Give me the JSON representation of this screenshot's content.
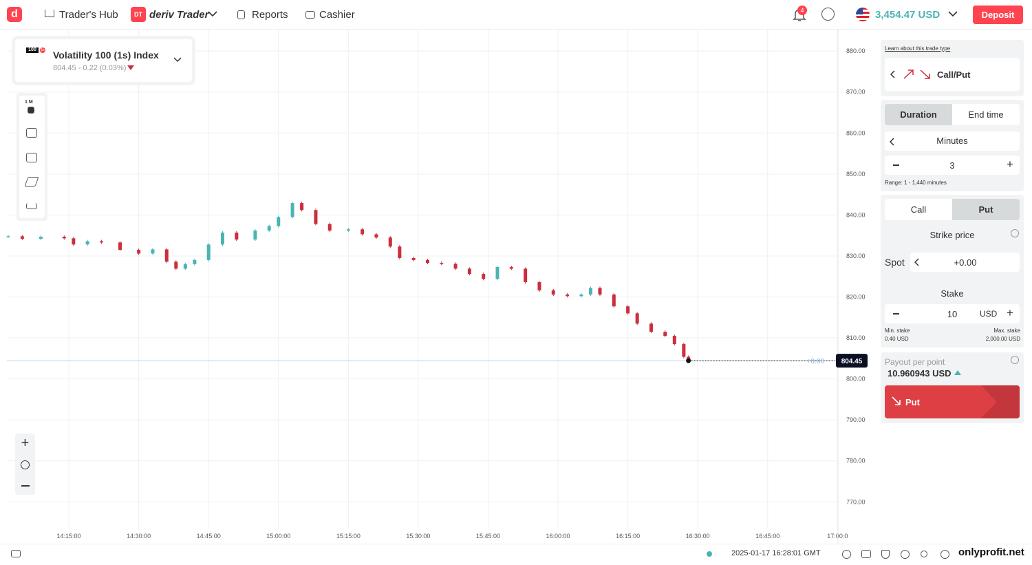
{
  "header": {
    "hub": "Trader's Hub",
    "brand_badge": "DT",
    "brand": "deriv Trader",
    "reports": "Reports",
    "cashier": "Cashier",
    "notifications": "4",
    "balance": "3,454.47 USD",
    "deposit": "Deposit"
  },
  "instrument": {
    "badge": "100",
    "badge2": "1s",
    "name": "Volatility 100 (1s) Index",
    "quote": "804.45 - 0.22 (0.03%)"
  },
  "toolbar": {
    "interval": "1 M"
  },
  "chart_data": {
    "type": "candlestick",
    "x": [
      842,
      845,
      849,
      854,
      856,
      859,
      862,
      866,
      870,
      873,
      876,
      878,
      880,
      882,
      885,
      888,
      891,
      895,
      898,
      900,
      903,
      905,
      908,
      911,
      915,
      918,
      921,
      924,
      926,
      929,
      932,
      935,
      938,
      941,
      944,
      947,
      950,
      953,
      956,
      959,
      962,
      965,
      967,
      969,
      972,
      975,
      977,
      980,
      983,
      985,
      987,
      988
    ],
    "close": [
      834.8,
      834.2,
      834.7,
      834.3,
      832.8,
      833.6,
      833.3,
      831.5,
      830.6,
      831.6,
      828.6,
      826.9,
      828,
      829,
      832.8,
      835.7,
      834,
      836.2,
      837.3,
      839.5,
      842.9,
      841.2,
      837.8,
      836.2,
      836.5,
      835.3,
      834.5,
      832.3,
      829.5,
      829,
      828.3,
      828.1,
      826.9,
      825.6,
      824.4,
      827.3,
      826.9,
      823.6,
      821.6,
      820.6,
      820.2,
      820.6,
      822.2,
      820.6,
      817.7,
      816,
      813.5,
      811.5,
      810.5,
      808.5,
      805.4,
      804.45
    ],
    "up_color": "#4bb4b3",
    "down_color": "#cc2e3d",
    "xlim": [
      841.7,
      1020.1
    ],
    "ylim": [
      763.5,
      885.4
    ],
    "xticks": [
      {
        "value": 855,
        "label": "14:15:00"
      },
      {
        "value": 870,
        "label": "14:30:00"
      },
      {
        "value": 885,
        "label": "14:45:00"
      },
      {
        "value": 900,
        "label": "15:00:00"
      },
      {
        "value": 915,
        "label": "15:15:00"
      },
      {
        "value": 930,
        "label": "15:30:00"
      },
      {
        "value": 945,
        "label": "15:45:00"
      },
      {
        "value": 960,
        "label": "16:00:00"
      },
      {
        "value": 975,
        "label": "16:15:00"
      },
      {
        "value": 990,
        "label": "16:30:00"
      },
      {
        "value": 1005,
        "label": "16:45:00"
      },
      {
        "value": 1020,
        "label": "17:00:0"
      }
    ],
    "yticks": [
      {
        "value": 880,
        "label": "880.00"
      },
      {
        "value": 870,
        "label": "870.00"
      },
      {
        "value": 860,
        "label": "860.00"
      },
      {
        "value": 850,
        "label": "850.00"
      },
      {
        "value": 840,
        "label": "840.00"
      },
      {
        "value": 830,
        "label": "830.00"
      },
      {
        "value": 820,
        "label": "820.00"
      },
      {
        "value": 810,
        "label": "810.00"
      },
      {
        "value": 800,
        "label": "800.00"
      },
      {
        "value": 790,
        "label": "790.00"
      },
      {
        "value": 780,
        "label": "780.00"
      },
      {
        "value": 770,
        "label": "770.00"
      }
    ],
    "barrier_label": "+0.00",
    "grid": true
  },
  "trade_panel": {
    "learn_link": "Learn about this trade type",
    "trade_type": "Call/Put",
    "tabs": [
      "Duration",
      "End time"
    ],
    "duration_unit": "Minutes",
    "duration_value": "3",
    "range": "Range: 1 - 1,440 minutes",
    "contract_tabs": [
      "Call",
      "Put"
    ],
    "strike_label": "Strike price",
    "spot_label": "Spot",
    "spot_value": "+0.00",
    "stake_label": "Stake",
    "stake_value": "10",
    "currency": "USD",
    "min_stake_label": "Min. stake",
    "min_stake": "0.40 USD",
    "max_stake_label": "Max. stake",
    "max_stake": "2,000.00 USD",
    "payout_label": "Payout per point",
    "payout": "10.960943 USD",
    "purchase": "Put"
  },
  "footer": {
    "timestamp": "2025-01-17 16:28:01 GMT"
  },
  "watermark": "onlyprofit.net"
}
